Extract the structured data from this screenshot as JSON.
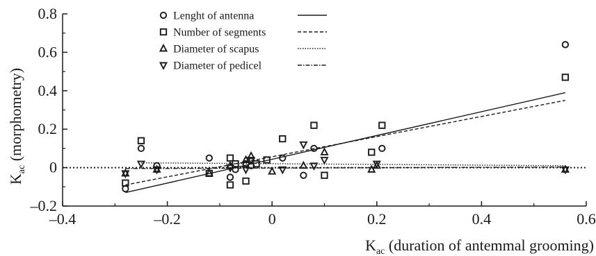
{
  "chart_data": {
    "type": "scatter",
    "xlabel": "K",
    "xlabel_sub": "ac",
    "xlabel_rest": " (duration of antemmal grooming)",
    "ylabel": "K",
    "ylabel_sub": "ac",
    "ylabel_rest": " (morphometry)",
    "xlim": [
      -0.4,
      0.6
    ],
    "ylim": [
      -0.2,
      0.8
    ],
    "xticks": [
      -0.4,
      -0.2,
      0,
      0.2,
      0.4,
      0.6
    ],
    "xtick_labels": [
      "–0.4",
      "–0.2",
      "0",
      "0.2",
      "0.4",
      "0.6"
    ],
    "yticks": [
      -0.2,
      0,
      0.2,
      0.4,
      0.6,
      0.8
    ],
    "ytick_labels": [
      "–0.2",
      "0",
      "0.2",
      "0.4",
      "0.6",
      "0.8"
    ],
    "zero_line": true,
    "legend_position": "top-center",
    "series": [
      {
        "name": "Lenght of antenna",
        "marker": "circle",
        "line_style": "solid",
        "trend": [
          [
            -0.28,
            -0.13
          ],
          [
            0.56,
            0.39
          ]
        ],
        "points": [
          [
            -0.28,
            -0.11
          ],
          [
            -0.25,
            0.1
          ],
          [
            -0.22,
            0.01
          ],
          [
            -0.12,
            0.05
          ],
          [
            -0.08,
            -0.05
          ],
          [
            -0.07,
            -0.01
          ],
          [
            -0.05,
            0.02
          ],
          [
            -0.04,
            0.01
          ],
          [
            0.02,
            0.05
          ],
          [
            0.06,
            -0.04
          ],
          [
            0.08,
            0.1
          ],
          [
            0.21,
            0.1
          ],
          [
            0.56,
            0.64
          ]
        ]
      },
      {
        "name": "Number of segments",
        "marker": "square",
        "line_style": "dashed",
        "trend": [
          [
            -0.28,
            -0.09
          ],
          [
            0.56,
            0.35
          ]
        ],
        "points": [
          [
            -0.28,
            -0.08
          ],
          [
            -0.25,
            0.14
          ],
          [
            -0.12,
            -0.03
          ],
          [
            -0.08,
            -0.09
          ],
          [
            -0.08,
            0.05
          ],
          [
            -0.07,
            0.02
          ],
          [
            -0.05,
            -0.07
          ],
          [
            -0.03,
            0.02
          ],
          [
            -0.01,
            0.04
          ],
          [
            0.02,
            0.15
          ],
          [
            0.08,
            0.22
          ],
          [
            0.1,
            -0.04
          ],
          [
            0.19,
            0.08
          ],
          [
            0.21,
            0.22
          ],
          [
            0.56,
            0.47
          ]
        ]
      },
      {
        "name": "Diameter of scapus",
        "marker": "triangle-up",
        "line_style": "dotted",
        "trend": [
          [
            -0.25,
            0.025
          ],
          [
            0.56,
            0.01
          ]
        ],
        "points": [
          [
            -0.28,
            -0.03
          ],
          [
            -0.22,
            -0.01
          ],
          [
            -0.12,
            -0.03
          ],
          [
            -0.08,
            0.01
          ],
          [
            -0.05,
            0.04
          ],
          [
            -0.04,
            0.06
          ],
          [
            0.0,
            -0.02
          ],
          [
            0.06,
            0.01
          ],
          [
            0.1,
            0.08
          ],
          [
            0.19,
            -0.01
          ],
          [
            0.2,
            0.01
          ],
          [
            0.56,
            -0.01
          ]
        ]
      },
      {
        "name": "Diameter of pedicel",
        "marker": "triangle-down",
        "line_style": "dashdot",
        "trend": [
          [
            -0.28,
            -0.005
          ],
          [
            0.56,
            0.003
          ]
        ],
        "points": [
          [
            -0.28,
            -0.03
          ],
          [
            -0.25,
            0.02
          ],
          [
            -0.22,
            -0.01
          ],
          [
            -0.08,
            0.0
          ],
          [
            -0.05,
            -0.01
          ],
          [
            -0.04,
            0.04
          ],
          [
            0.02,
            -0.01
          ],
          [
            0.06,
            0.12
          ],
          [
            0.08,
            0.01
          ],
          [
            0.1,
            0.04
          ],
          [
            0.2,
            0.02
          ],
          [
            0.56,
            -0.01
          ]
        ]
      }
    ]
  }
}
